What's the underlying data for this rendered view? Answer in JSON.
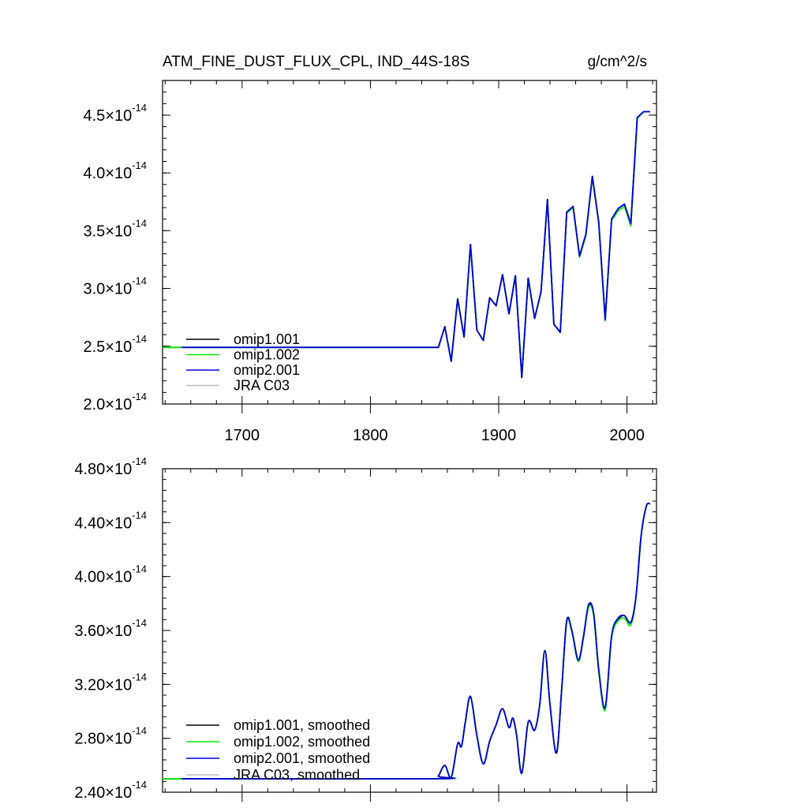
{
  "chart_data": [
    {
      "type": "line",
      "title": "ATM_FINE_DUST_FLUX_CPL, IND_44S-18S",
      "units": "g/cm^2/s",
      "xlim": [
        1638,
        2023
      ],
      "ylim": [
        2e-14,
        4.8e-14
      ],
      "xticks": [
        1700,
        1800,
        1900,
        2000
      ],
      "xtick_labels": [
        "1700",
        "1800",
        "1900",
        "2000"
      ],
      "yticks": [
        2e-14,
        2.5e-14,
        3e-14,
        3.5e-14,
        4e-14,
        4.5e-14
      ],
      "ytick_labels": [
        {
          "mantissa": "2.0",
          "times": "×10",
          "exp": "-14"
        },
        {
          "mantissa": "2.5",
          "times": "×10",
          "exp": "-14"
        },
        {
          "mantissa": "3.0",
          "times": "×10",
          "exp": "-14"
        },
        {
          "mantissa": "3.5",
          "times": "×10",
          "exp": "-14"
        },
        {
          "mantissa": "4.0",
          "times": "×10",
          "exp": "-14"
        },
        {
          "mantissa": "4.5",
          "times": "×10",
          "exp": "-14"
        }
      ],
      "legend_position": "bottom-left",
      "series": [
        {
          "name": "omip1.001",
          "color": "#000000",
          "x": [
            1638,
            1853,
            1858,
            1863,
            1868,
            1873,
            1878,
            1883,
            1888,
            1893,
            1898,
            1903,
            1908,
            1913,
            1918,
            1923,
            1928,
            1933,
            1938,
            1943,
            1948,
            1953,
            1958,
            1963,
            1968,
            1973,
            1978,
            1983,
            1988,
            1993,
            1998,
            2003,
            2008,
            2013,
            2018
          ],
          "y": [
            2.49e-14,
            2.49e-14,
            2.67e-14,
            2.37e-14,
            2.91e-14,
            2.58e-14,
            3.38e-14,
            2.64e-14,
            2.55e-14,
            2.92e-14,
            2.85e-14,
            3.12e-14,
            2.78e-14,
            3.11e-14,
            2.23e-14,
            3.09e-14,
            2.74e-14,
            2.97e-14,
            3.77e-14,
            2.69e-14,
            2.62e-14,
            3.66e-14,
            3.71e-14,
            3.28e-14,
            3.47e-14,
            3.97e-14,
            3.57e-14,
            2.73e-14,
            3.6e-14,
            3.69e-14,
            3.73e-14,
            3.56e-14,
            4.48e-14,
            4.53e-14,
            4.53e-14
          ]
        },
        {
          "name": "omip1.002",
          "color": "#00ee00",
          "x": [
            1638,
            1853,
            1858,
            1863,
            1868,
            1873,
            1878,
            1883,
            1888,
            1893,
            1898,
            1903,
            1908,
            1913,
            1918,
            1923,
            1928,
            1933,
            1938,
            1943,
            1948,
            1953,
            1958,
            1963,
            1968,
            1973,
            1978,
            1983,
            1988,
            1993,
            1998,
            2003,
            2008,
            2013,
            2018
          ],
          "y": [
            2.49e-14,
            2.49e-14,
            2.67e-14,
            2.37e-14,
            2.91e-14,
            2.58e-14,
            3.38e-14,
            2.64e-14,
            2.55e-14,
            2.92e-14,
            2.85e-14,
            3.12e-14,
            2.78e-14,
            3.11e-14,
            2.23e-14,
            3.09e-14,
            2.74e-14,
            2.97e-14,
            3.77e-14,
            2.69e-14,
            2.62e-14,
            3.65e-14,
            3.7e-14,
            3.27e-14,
            3.46e-14,
            3.96e-14,
            3.56e-14,
            2.72e-14,
            3.59e-14,
            3.67e-14,
            3.71e-14,
            3.54e-14,
            4.47e-14,
            4.53e-14,
            4.53e-14
          ]
        },
        {
          "name": "omip2.001",
          "color": "#0000dd",
          "x": [
            1653,
            1853,
            1858,
            1863,
            1868,
            1873,
            1878,
            1883,
            1888,
            1893,
            1898,
            1903,
            1908,
            1913,
            1918,
            1923,
            1928,
            1933,
            1938,
            1943,
            1948,
            1953,
            1958,
            1963,
            1968,
            1973,
            1978,
            1983,
            1988,
            1993,
            1998,
            2003,
            2008,
            2013,
            2018
          ],
          "y": [
            2.49e-14,
            2.49e-14,
            2.67e-14,
            2.37e-14,
            2.91e-14,
            2.58e-14,
            3.38e-14,
            2.64e-14,
            2.55e-14,
            2.92e-14,
            2.85e-14,
            3.12e-14,
            2.78e-14,
            3.11e-14,
            2.23e-14,
            3.09e-14,
            2.74e-14,
            2.97e-14,
            3.77e-14,
            2.69e-14,
            2.62e-14,
            3.66e-14,
            3.71e-14,
            3.28e-14,
            3.47e-14,
            3.97e-14,
            3.57e-14,
            2.73e-14,
            3.6e-14,
            3.69e-14,
            3.73e-14,
            3.56e-14,
            4.48e-14,
            4.53e-14,
            4.53e-14
          ]
        },
        {
          "name": "JRA C03",
          "color": "#bbbbbb",
          "x": [],
          "y": []
        }
      ]
    },
    {
      "type": "line",
      "title": "",
      "smooth": true,
      "xlim": [
        1638,
        2023
      ],
      "ylim": [
        2.4e-14,
        4.8e-14
      ],
      "xticks": [
        1700,
        1800,
        1900,
        2000
      ],
      "xtick_labels": [
        "",
        "",
        "",
        ""
      ],
      "yticks": [
        2.4e-14,
        2.8e-14,
        3.2e-14,
        3.6e-14,
        4e-14,
        4.4e-14,
        4.8e-14
      ],
      "ytick_labels": [
        {
          "mantissa": "2.40",
          "times": "×10",
          "exp": "-14"
        },
        {
          "mantissa": "2.80",
          "times": "×10",
          "exp": "-14"
        },
        {
          "mantissa": "3.20",
          "times": "×10",
          "exp": "-14"
        },
        {
          "mantissa": "3.60",
          "times": "×10",
          "exp": "-14"
        },
        {
          "mantissa": "4.00",
          "times": "×10",
          "exp": "-14"
        },
        {
          "mantissa": "4.40",
          "times": "×10",
          "exp": "-14"
        },
        {
          "mantissa": "4.80",
          "times": "×10",
          "exp": "-14"
        }
      ],
      "legend_position": "bottom-left",
      "series": [
        {
          "name": "omip1.001, smoothed",
          "color": "#000000",
          "x": [
            1638,
            1850,
            1853,
            1858,
            1863,
            1868,
            1871,
            1874,
            1878,
            1883,
            1888,
            1893,
            1898,
            1903,
            1908,
            1911,
            1914,
            1918,
            1923,
            1928,
            1932,
            1936,
            1940,
            1945,
            1949,
            1953,
            1957,
            1962,
            1966,
            1970,
            1974,
            1978,
            1983,
            1988,
            1993,
            1998,
            2003,
            2007,
            2011,
            2015,
            2018
          ],
          "y": [
            2.5e-14,
            2.5e-14,
            2.52e-14,
            2.6e-14,
            2.51e-14,
            2.76e-14,
            2.74e-14,
            2.92e-14,
            3.11e-14,
            2.82e-14,
            2.61e-14,
            2.78e-14,
            2.9e-14,
            3.02e-14,
            2.88e-14,
            2.95e-14,
            2.82e-14,
            2.54e-14,
            2.92e-14,
            2.86e-14,
            3.05e-14,
            3.45e-14,
            3.05e-14,
            2.69e-14,
            3.15e-14,
            3.67e-14,
            3.6e-14,
            3.38e-14,
            3.55e-14,
            3.78e-14,
            3.72e-14,
            3.3e-14,
            3.02e-14,
            3.55e-14,
            3.68e-14,
            3.71e-14,
            3.66e-14,
            3.85e-14,
            4.3e-14,
            4.52e-14,
            4.54e-14
          ]
        },
        {
          "name": "omip1.002, smoothed",
          "color": "#00ee00",
          "x": [
            1638,
            1850,
            1853,
            1858,
            1863,
            1868,
            1871,
            1874,
            1878,
            1883,
            1888,
            1893,
            1898,
            1903,
            1908,
            1911,
            1914,
            1918,
            1923,
            1928,
            1932,
            1936,
            1940,
            1945,
            1949,
            1953,
            1957,
            1962,
            1966,
            1970,
            1974,
            1978,
            1983,
            1988,
            1993,
            1998,
            2003,
            2007,
            2011,
            2015,
            2018
          ],
          "y": [
            2.5e-14,
            2.5e-14,
            2.52e-14,
            2.6e-14,
            2.51e-14,
            2.76e-14,
            2.74e-14,
            2.92e-14,
            3.11e-14,
            2.82e-14,
            2.61e-14,
            2.78e-14,
            2.9e-14,
            3.02e-14,
            2.88e-14,
            2.95e-14,
            2.82e-14,
            2.54e-14,
            2.92e-14,
            2.86e-14,
            3.05e-14,
            3.45e-14,
            3.05e-14,
            2.69e-14,
            3.15e-14,
            3.66e-14,
            3.59e-14,
            3.37e-14,
            3.54e-14,
            3.77e-14,
            3.71e-14,
            3.29e-14,
            3.01e-14,
            3.54e-14,
            3.67e-14,
            3.69e-14,
            3.64e-14,
            3.84e-14,
            4.29e-14,
            4.52e-14,
            4.54e-14
          ]
        },
        {
          "name": "omip2.001, smoothed",
          "color": "#0000dd",
          "x": [
            1653,
            1850,
            1853,
            1858,
            1863,
            1868,
            1871,
            1874,
            1878,
            1883,
            1888,
            1893,
            1898,
            1903,
            1908,
            1911,
            1914,
            1918,
            1923,
            1928,
            1932,
            1936,
            1940,
            1945,
            1949,
            1953,
            1957,
            1962,
            1966,
            1970,
            1974,
            1978,
            1983,
            1988,
            1993,
            1998,
            2003,
            2007,
            2011,
            2015,
            2018
          ],
          "y": [
            2.5e-14,
            2.5e-14,
            2.52e-14,
            2.6e-14,
            2.51e-14,
            2.76e-14,
            2.74e-14,
            2.92e-14,
            3.11e-14,
            2.82e-14,
            2.61e-14,
            2.78e-14,
            2.9e-14,
            3.02e-14,
            2.88e-14,
            2.95e-14,
            2.82e-14,
            2.54e-14,
            2.92e-14,
            2.86e-14,
            3.05e-14,
            3.45e-14,
            3.05e-14,
            2.69e-14,
            3.15e-14,
            3.67e-14,
            3.6e-14,
            3.38e-14,
            3.55e-14,
            3.79e-14,
            3.73e-14,
            3.31e-14,
            3.03e-14,
            3.56e-14,
            3.69e-14,
            3.71e-14,
            3.66e-14,
            3.85e-14,
            4.3e-14,
            4.52e-14,
            4.54e-14
          ]
        },
        {
          "name": "JRA C03, smoothed",
          "color": "#bbbbbb",
          "x": [],
          "y": []
        }
      ]
    }
  ]
}
